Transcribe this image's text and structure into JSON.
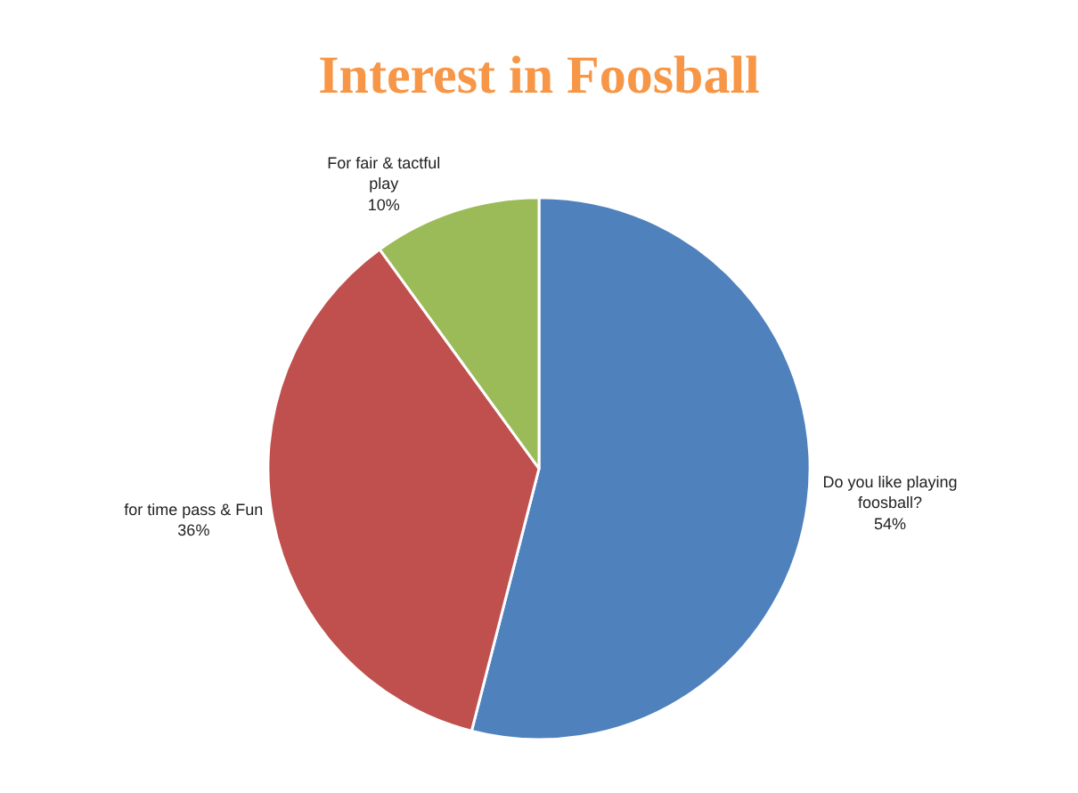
{
  "chart_data": {
    "type": "pie",
    "title": "Interest in Foosball",
    "categories": [
      "Do you like playing foosball?",
      "for time pass & Fun",
      "For fair & tactful play"
    ],
    "values": [
      54,
      36,
      10
    ],
    "value_labels": [
      "54%",
      "36%",
      "10%"
    ],
    "colors": [
      "#4f81bd",
      "#c0504d",
      "#9bbb59"
    ],
    "legend": false
  }
}
